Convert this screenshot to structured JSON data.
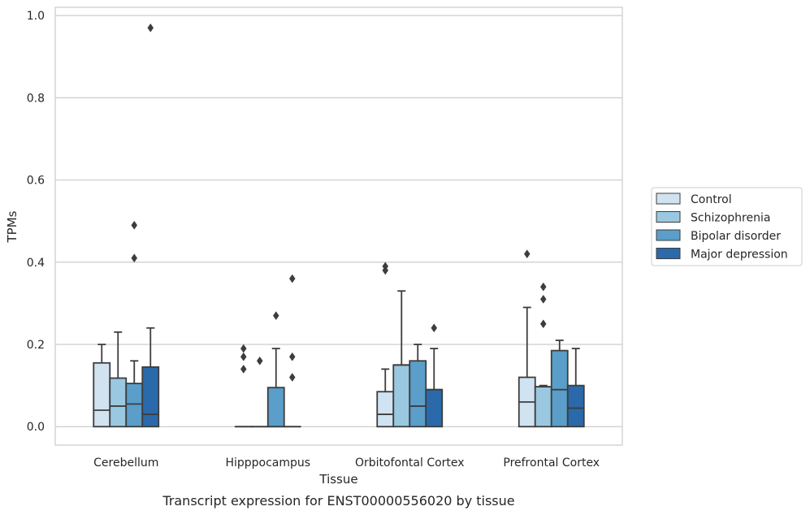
{
  "chart_data": {
    "type": "box",
    "xlabel": "Tissue",
    "ylabel": "TPMs",
    "caption": "Transcript expression for ENST00000556020 by tissue",
    "ylim": [
      -0.045,
      1.02
    ],
    "yticks": [
      0.0,
      0.2,
      0.4,
      0.6,
      0.8,
      1.0
    ],
    "ytick_labels": [
      "0.0",
      "0.2",
      "0.4",
      "0.6",
      "0.8",
      "1.0"
    ],
    "grid": "horizontal",
    "legend_position": "right",
    "categories": [
      "Cerebellum",
      "Hipppocampus",
      "Orbitofontal Cortex",
      "Prefrontal Cortex"
    ],
    "series": [
      {
        "name": "Control",
        "color": "#d1e2f1",
        "boxes": [
          {
            "q1": 0.0,
            "median": 0.04,
            "q3": 0.155,
            "whisker_low": 0.0,
            "whisker_high": 0.2,
            "outliers": []
          },
          {
            "q1": 0.0,
            "median": 0.0,
            "q3": 0.0,
            "whisker_low": 0.0,
            "whisker_high": 0.0,
            "outliers": [
              0.14,
              0.17,
              0.19
            ]
          },
          {
            "q1": 0.0,
            "median": 0.03,
            "q3": 0.085,
            "whisker_low": 0.0,
            "whisker_high": 0.14,
            "outliers": [
              0.38,
              0.39
            ]
          },
          {
            "q1": 0.0,
            "median": 0.06,
            "q3": 0.12,
            "whisker_low": 0.0,
            "whisker_high": 0.29,
            "outliers": [
              0.42
            ]
          }
        ]
      },
      {
        "name": "Schizophrenia",
        "color": "#9ac8e0",
        "boxes": [
          {
            "q1": 0.0,
            "median": 0.05,
            "q3": 0.118,
            "whisker_low": 0.0,
            "whisker_high": 0.23,
            "outliers": []
          },
          {
            "q1": 0.0,
            "median": 0.0,
            "q3": 0.0,
            "whisker_low": 0.0,
            "whisker_high": 0.0,
            "outliers": [
              0.16
            ]
          },
          {
            "q1": 0.0,
            "median": 0.15,
            "q3": 0.15,
            "whisker_low": 0.0,
            "whisker_high": 0.33,
            "outliers": []
          },
          {
            "q1": 0.0,
            "median": 0.097,
            "q3": 0.097,
            "whisker_low": 0.0,
            "whisker_high": 0.1,
            "outliers": [
              0.25,
              0.31,
              0.34
            ]
          }
        ]
      },
      {
        "name": "Bipolar disorder",
        "color": "#5a9ec9",
        "boxes": [
          {
            "q1": 0.0,
            "median": 0.055,
            "q3": 0.105,
            "whisker_low": 0.0,
            "whisker_high": 0.16,
            "outliers": [
              0.41,
              0.49
            ]
          },
          {
            "q1": 0.0,
            "median": 0.0,
            "q3": 0.095,
            "whisker_low": 0.0,
            "whisker_high": 0.19,
            "outliers": [
              0.27
            ]
          },
          {
            "q1": 0.0,
            "median": 0.05,
            "q3": 0.16,
            "whisker_low": 0.0,
            "whisker_high": 0.2,
            "outliers": []
          },
          {
            "q1": 0.0,
            "median": 0.09,
            "q3": 0.185,
            "whisker_low": 0.0,
            "whisker_high": 0.21,
            "outliers": []
          }
        ]
      },
      {
        "name": "Major depression",
        "color": "#2a6aaa",
        "boxes": [
          {
            "q1": 0.0,
            "median": 0.03,
            "q3": 0.145,
            "whisker_low": 0.0,
            "whisker_high": 0.24,
            "outliers": [
              0.97
            ]
          },
          {
            "q1": 0.0,
            "median": 0.0,
            "q3": 0.0,
            "whisker_low": 0.0,
            "whisker_high": 0.0,
            "outliers": [
              0.12,
              0.17,
              0.36
            ]
          },
          {
            "q1": 0.0,
            "median": 0.09,
            "q3": 0.09,
            "whisker_low": 0.0,
            "whisker_high": 0.19,
            "outliers": [
              0.24
            ]
          },
          {
            "q1": 0.0,
            "median": 0.045,
            "q3": 0.1,
            "whisker_low": 0.0,
            "whisker_high": 0.19,
            "outliers": []
          }
        ]
      }
    ]
  }
}
